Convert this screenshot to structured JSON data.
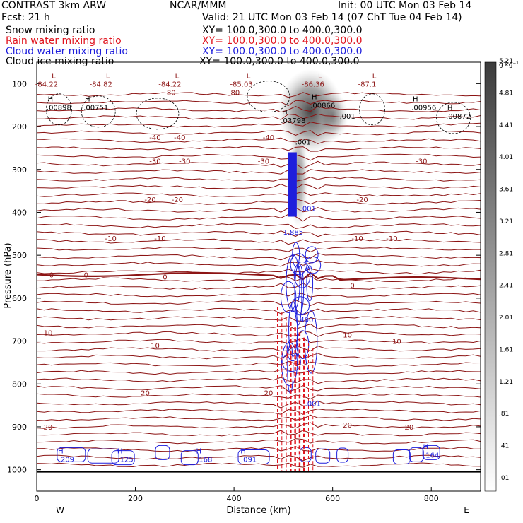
{
  "header": {
    "model": "CONTRAST  3km ARW",
    "org": "NCAR/MMM",
    "init": "Init: 00 UTC Mon 03 Feb 14",
    "fcst": "Fcst:   21 h",
    "valid": "Valid: 21 UTC Mon 03 Feb 14 (07 ChT Tue 04 Feb 14)"
  },
  "fields": [
    {
      "name": "Snow mixing ratio",
      "xy": "XY= 100.0,300.0 to 400.0,300.0",
      "color": "#000000"
    },
    {
      "name": "Rain water mixing ratio",
      "xy": "XY= 100.0,300.0 to 400.0,300.0",
      "color": "#e0141e"
    },
    {
      "name": "Cloud water mixing ratio",
      "xy": "XY= 100.0,300.0 to 400.0,300.0",
      "color": "#1e1edc"
    },
    {
      "name": "Cloud ice mixing ratio",
      "xy": "XY= 100.0,300.0 to 400.0,300.0",
      "color": "#000000"
    }
  ],
  "colors": {
    "temperature": "#8c1414",
    "rain": "#e0141e",
    "cloud_water": "#1e1edc",
    "cloud_ice": "#000000",
    "snow_shade": "#505050"
  },
  "chart_data": {
    "type": "contour",
    "xlabel": "Distance (km)",
    "ylabel": "Pressure (hPa)",
    "xlim": [
      0,
      900
    ],
    "ylim": [
      1050,
      50
    ],
    "xticks": [
      0,
      200,
      400,
      600,
      800
    ],
    "yticks": [
      100,
      200,
      300,
      400,
      500,
      600,
      700,
      800,
      900,
      1000
    ],
    "x_end_labels": {
      "left": "W",
      "right": "E"
    },
    "colorbar": {
      "unit": "g kg⁻¹",
      "levels": [
        ".01",
        ".41",
        ".81",
        "1.21",
        "1.61",
        "2.01",
        "2.41",
        "2.81",
        "3.21",
        "3.61",
        "4.01",
        "4.41",
        "4.81",
        "5.21"
      ]
    },
    "temperature_labels": [
      {
        "x": 20,
        "p": 100,
        "text": "-84.22",
        "kind": "low"
      },
      {
        "x": 130,
        "p": 100,
        "text": "-84.82",
        "kind": "low"
      },
      {
        "x": 270,
        "p": 100,
        "text": "-84.22",
        "kind": "low"
      },
      {
        "x": 415,
        "p": 100,
        "text": "-85.03",
        "kind": "low"
      },
      {
        "x": 560,
        "p": 100,
        "text": "-86.36",
        "kind": "low"
      },
      {
        "x": 670,
        "p": 100,
        "text": "-87.1",
        "kind": "low"
      },
      {
        "x": 270,
        "p": 120,
        "text": "-80",
        "kind": "contour"
      },
      {
        "x": 400,
        "p": 120,
        "text": "-80",
        "kind": "contour"
      },
      {
        "x": 240,
        "p": 225,
        "text": "-40",
        "kind": "contour"
      },
      {
        "x": 290,
        "p": 225,
        "text": "-40",
        "kind": "contour"
      },
      {
        "x": 470,
        "p": 225,
        "text": "-40",
        "kind": "contour"
      },
      {
        "x": 240,
        "p": 280,
        "text": "-30",
        "kind": "contour"
      },
      {
        "x": 300,
        "p": 280,
        "text": "-30",
        "kind": "contour"
      },
      {
        "x": 460,
        "p": 280,
        "text": "-30",
        "kind": "contour"
      },
      {
        "x": 780,
        "p": 280,
        "text": "-30",
        "kind": "contour"
      },
      {
        "x": 230,
        "p": 370,
        "text": "-20",
        "kind": "contour"
      },
      {
        "x": 285,
        "p": 370,
        "text": "-20",
        "kind": "contour"
      },
      {
        "x": 660,
        "p": 370,
        "text": "-20",
        "kind": "contour"
      },
      {
        "x": 150,
        "p": 460,
        "text": "-10",
        "kind": "contour"
      },
      {
        "x": 250,
        "p": 460,
        "text": "-10",
        "kind": "contour"
      },
      {
        "x": 650,
        "p": 460,
        "text": "-10",
        "kind": "contour"
      },
      {
        "x": 720,
        "p": 460,
        "text": "-10",
        "kind": "contour"
      },
      {
        "x": 30,
        "p": 545,
        "text": "0",
        "kind": "contour"
      },
      {
        "x": 100,
        "p": 545,
        "text": "0",
        "kind": "contour"
      },
      {
        "x": 260,
        "p": 550,
        "text": "0",
        "kind": "contour"
      },
      {
        "x": 640,
        "p": 570,
        "text": "0",
        "kind": "contour"
      },
      {
        "x": 23,
        "p": 680,
        "text": "10",
        "kind": "contour"
      },
      {
        "x": 240,
        "p": 710,
        "text": "10",
        "kind": "contour"
      },
      {
        "x": 630,
        "p": 685,
        "text": "10",
        "kind": "contour"
      },
      {
        "x": 730,
        "p": 700,
        "text": "10",
        "kind": "contour"
      },
      {
        "x": 220,
        "p": 820,
        "text": "20",
        "kind": "contour"
      },
      {
        "x": 470,
        "p": 820,
        "text": "20",
        "kind": "contour"
      },
      {
        "x": 23,
        "p": 900,
        "text": "20",
        "kind": "contour"
      },
      {
        "x": 630,
        "p": 895,
        "text": "20",
        "kind": "contour"
      },
      {
        "x": 755,
        "p": 900,
        "text": "20",
        "kind": "contour"
      }
    ],
    "snow_highs": [
      {
        "x": 45,
        "p": 155,
        "text": ".00898"
      },
      {
        "x": 120,
        "p": 155,
        "text": ".00751"
      },
      {
        "x": 580,
        "p": 150,
        "text": ".00866"
      },
      {
        "x": 785,
        "p": 155,
        "text": ".00956"
      },
      {
        "x": 855,
        "p": 175,
        "text": ".00872"
      },
      {
        "x": 520,
        "p": 185,
        "text": ".03798"
      }
    ],
    "ice_labels": [
      {
        "x": 630,
        "p": 175,
        "text": ".001"
      },
      {
        "x": 540,
        "p": 235,
        "text": ".001"
      }
    ],
    "cloud_labels": [
      {
        "x": 550,
        "p": 390,
        "text": ".001"
      },
      {
        "x": 520,
        "p": 445,
        "text": "1.885"
      },
      {
        "x": 545,
        "p": 650,
        "text": ".400"
      },
      {
        "x": 560,
        "p": 845,
        "text": ".001"
      }
    ],
    "cloud_highs": [
      {
        "x": 60,
        "p": 975,
        "text": ".209"
      },
      {
        "x": 180,
        "p": 975,
        "text": ".125"
      },
      {
        "x": 340,
        "p": 975,
        "text": ".168"
      },
      {
        "x": 430,
        "p": 975,
        "text": ".091"
      },
      {
        "x": 800,
        "p": 965,
        "text": ".164"
      }
    ],
    "rain_highs": [
      {
        "x": 520,
        "p": 755,
        "text": "7.1"
      }
    ]
  }
}
